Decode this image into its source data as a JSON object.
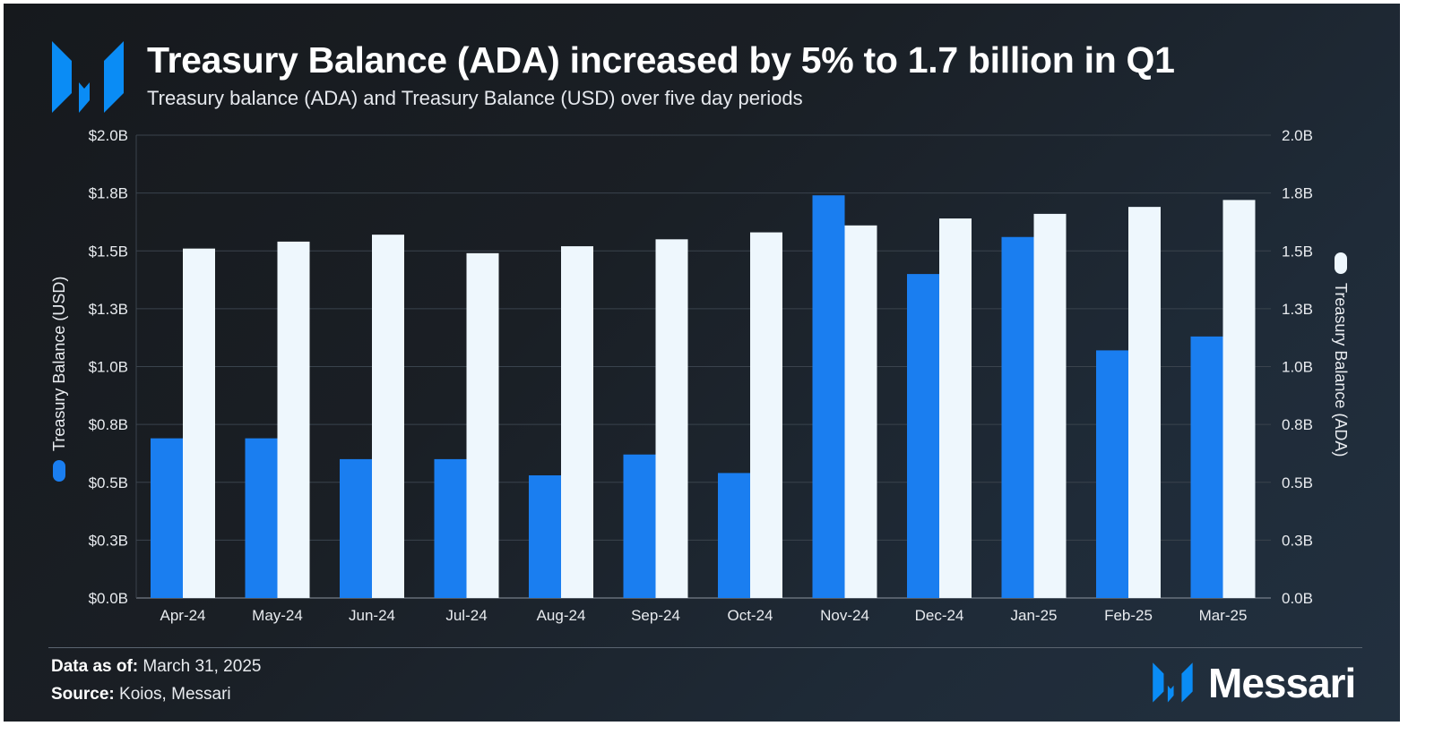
{
  "header": {
    "title": "Treasury Balance (ADA) increased by 5% to 1.7 billion in Q1",
    "subtitle": "Treasury balance (ADA) and Treasury Balance (USD) over five day periods"
  },
  "footer": {
    "data_as_of_label": "Data as of:",
    "data_as_of_value": "March 31, 2025",
    "source_label": "Source:",
    "source_value": "Koios, Messari",
    "brand": "Messari"
  },
  "colors": {
    "usd": "#1a7ef0",
    "ada": "#eef7fd",
    "logo": "#0a8cf5"
  },
  "chart_data": {
    "type": "bar",
    "title": "Treasury Balance (ADA) increased by 5% to 1.7 billion in Q1",
    "subtitle": "Treasury balance (ADA) and Treasury Balance (USD) over five day periods",
    "categories": [
      "Apr-24",
      "May-24",
      "Jun-24",
      "Jul-24",
      "Aug-24",
      "Sep-24",
      "Oct-24",
      "Nov-24",
      "Dec-24",
      "Jan-25",
      "Feb-25",
      "Mar-25"
    ],
    "series": [
      {
        "name": "Treasury Balance (USD)",
        "axis": "left",
        "color": "#1a7ef0",
        "values": [
          0.69,
          0.69,
          0.6,
          0.6,
          0.53,
          0.62,
          0.54,
          1.74,
          1.4,
          1.56,
          1.07,
          1.13
        ]
      },
      {
        "name": "Treasury Balance (ADA)",
        "axis": "right",
        "color": "#eef7fd",
        "values": [
          1.51,
          1.54,
          1.57,
          1.49,
          1.52,
          1.55,
          1.58,
          1.61,
          1.64,
          1.66,
          1.69,
          1.72
        ]
      }
    ],
    "ylabel_left": "Treasury Balance (USD)",
    "ylabel_right": "Treasury Balance (ADA)",
    "ylim": [
      0,
      2.0
    ],
    "yticks": [
      0,
      0.25,
      0.5,
      0.75,
      1.0,
      1.25,
      1.5,
      1.75,
      2.0
    ],
    "ytick_labels_left": [
      "$0.0B",
      "$0.3B",
      "$0.5B",
      "$0.8B",
      "$1.0B",
      "$1.3B",
      "$1.5B",
      "$1.8B",
      "$2.0B"
    ],
    "ytick_labels_right": [
      "0.0B",
      "0.3B",
      "0.5B",
      "0.8B",
      "1.0B",
      "1.3B",
      "1.5B",
      "1.8B",
      "2.0B"
    ],
    "grid": true,
    "legend": "axis-labels"
  }
}
